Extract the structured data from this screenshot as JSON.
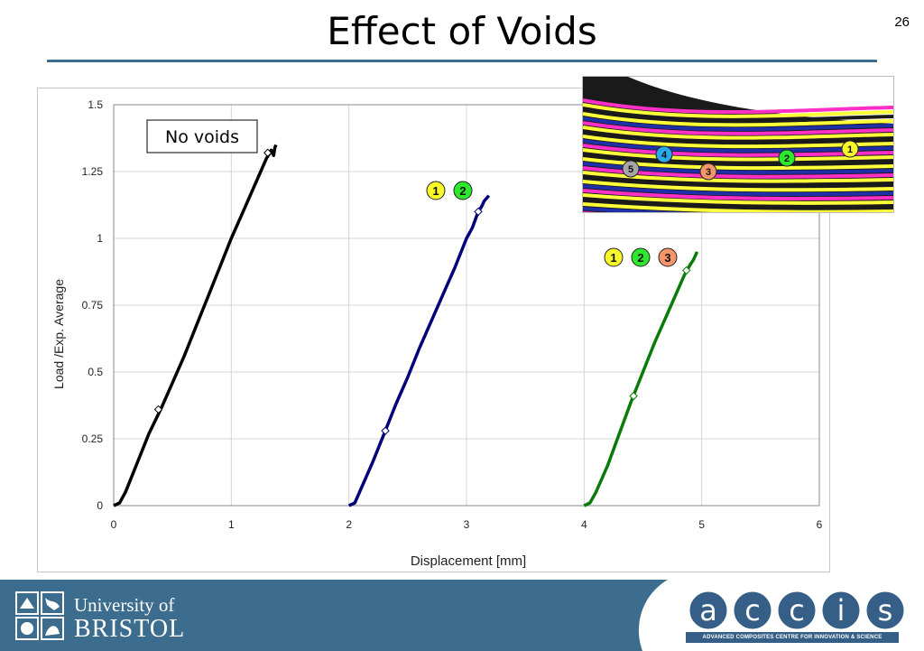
{
  "slide": {
    "title": "Effect of Voids",
    "page_number": "26"
  },
  "chart_data": {
    "type": "line",
    "xlabel": "Displacement [mm]",
    "ylabel": "Load /Exp. Average",
    "xlim": [
      0,
      6
    ],
    "ylim": [
      0,
      1.5
    ],
    "x_ticks": [
      "0",
      "1",
      "2",
      "3",
      "4",
      "5",
      "6"
    ],
    "y_ticks": [
      "0",
      "0.25",
      "0.5",
      "0.75",
      "1",
      "1.25",
      "1.5"
    ],
    "grid": true,
    "series": [
      {
        "color": "#000000",
        "x": [
          0.0,
          0.05,
          0.1,
          0.2,
          0.3,
          0.4,
          0.5,
          0.6,
          0.7,
          0.8,
          0.9,
          1.0,
          1.1,
          1.2,
          1.25,
          1.3,
          1.33,
          1.34,
          1.36,
          1.37,
          1.38
        ],
        "y": [
          0.0,
          0.01,
          0.05,
          0.16,
          0.27,
          0.36,
          0.46,
          0.56,
          0.67,
          0.78,
          0.89,
          1.0,
          1.1,
          1.2,
          1.25,
          1.3,
          1.32,
          1.33,
          1.31,
          1.34,
          1.35
        ],
        "markers": [
          [
            0.38,
            0.36
          ],
          [
            1.31,
            1.32
          ]
        ]
      },
      {
        "color": "#00007a",
        "x": [
          2.0,
          2.05,
          2.1,
          2.2,
          2.3,
          2.4,
          2.5,
          2.6,
          2.7,
          2.8,
          2.9,
          3.0,
          3.05,
          3.1,
          3.13,
          3.15,
          3.17,
          3.19
        ],
        "y": [
          0.0,
          0.01,
          0.06,
          0.16,
          0.27,
          0.38,
          0.48,
          0.59,
          0.69,
          0.79,
          0.89,
          1.0,
          1.04,
          1.1,
          1.12,
          1.14,
          1.15,
          1.16
        ],
        "markers": [
          [
            2.31,
            0.28
          ],
          [
            3.1,
            1.1
          ]
        ]
      },
      {
        "color": "#0a7a0a",
        "x": [
          4.0,
          4.05,
          4.1,
          4.2,
          4.3,
          4.4,
          4.5,
          4.6,
          4.7,
          4.8,
          4.85,
          4.9,
          4.93,
          4.95,
          4.96
        ],
        "y": [
          0.0,
          0.01,
          0.05,
          0.15,
          0.27,
          0.39,
          0.5,
          0.61,
          0.71,
          0.81,
          0.86,
          0.9,
          0.92,
          0.94,
          0.95
        ],
        "markers": [
          [
            4.42,
            0.41
          ],
          [
            4.87,
            0.88
          ]
        ]
      }
    ],
    "annotations": [
      {
        "text": "No voids"
      },
      {
        "badges": [
          "1",
          "2"
        ]
      },
      {
        "badges": [
          "1",
          "2",
          "3"
        ]
      }
    ]
  },
  "badge_colors": {
    "1": "#f7f72a",
    "2": "#2ee82e",
    "3": "#f4956a",
    "4": "#2aa8f0",
    "5": "#a6a6a6"
  },
  "inset_badges": [
    "1",
    "2",
    "3",
    "4",
    "5"
  ],
  "footer": {
    "university_line1": "University of",
    "university_line2": "BRISTOL",
    "accis_letters": [
      "a",
      "c",
      "c",
      "i",
      "s"
    ],
    "accis_tagline": "ADVANCED COMPOSITES CENTRE FOR INNOVATION & SCIENCE"
  },
  "colors": {
    "footer_bg": "#3d6d8e",
    "title_rule": "#3b6e8f"
  }
}
